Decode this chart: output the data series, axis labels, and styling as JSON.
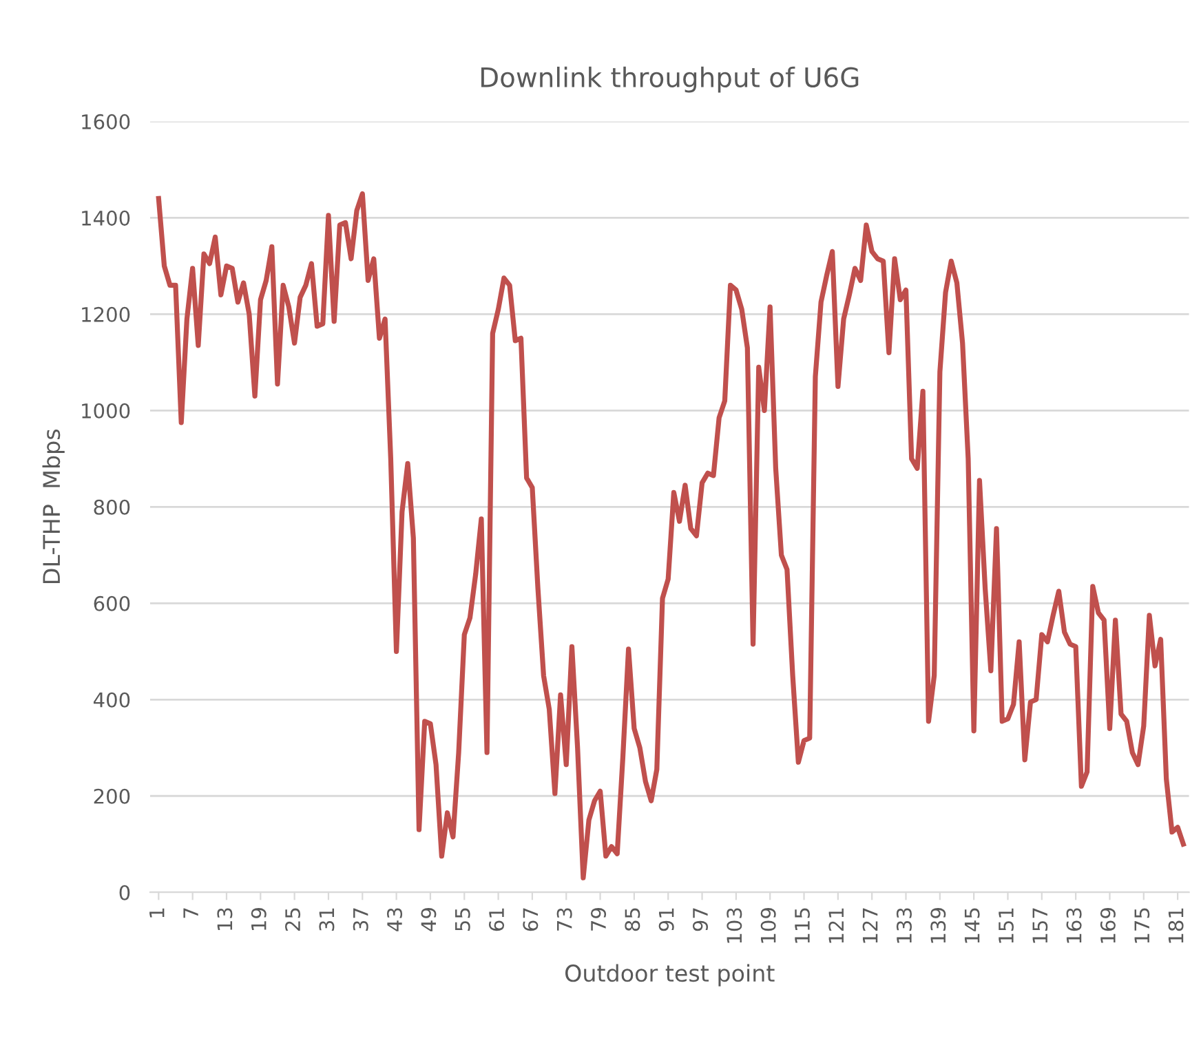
{
  "chart_data": {
    "type": "line",
    "title": "Downlink throughput of U6G",
    "xlabel": "Outdoor test point",
    "ylabel": "DL-THP  Mbps",
    "x": [
      1,
      2,
      3,
      4,
      5,
      6,
      7,
      8,
      9,
      10,
      11,
      12,
      13,
      14,
      15,
      16,
      17,
      18,
      19,
      20,
      21,
      22,
      23,
      24,
      25,
      26,
      27,
      28,
      29,
      30,
      31,
      32,
      33,
      34,
      35,
      36,
      37,
      38,
      39,
      40,
      41,
      42,
      43,
      44,
      45,
      46,
      47,
      48,
      49,
      50,
      51,
      52,
      53,
      54,
      55,
      56,
      57,
      58,
      59,
      60,
      61,
      62,
      63,
      64,
      65,
      66,
      67,
      68,
      69,
      70,
      71,
      72,
      73,
      74,
      75,
      76,
      77,
      78,
      79,
      80,
      81,
      82,
      83,
      84,
      85,
      86,
      87,
      88,
      89,
      90,
      91,
      92,
      93,
      94,
      95,
      96,
      97,
      98,
      99,
      100,
      101,
      102,
      103,
      104,
      105,
      106,
      107,
      108,
      109,
      110,
      111,
      112,
      113,
      114,
      115,
      116,
      117,
      118,
      119,
      120,
      121,
      122,
      123,
      124,
      125,
      126,
      127,
      128,
      129,
      130,
      131,
      132,
      133,
      134,
      135,
      136,
      137,
      138,
      139,
      140,
      141,
      142,
      143,
      144,
      145,
      146,
      147,
      148,
      149,
      150,
      151,
      152,
      153,
      154,
      155,
      156,
      157,
      158,
      159,
      160,
      161,
      162,
      163,
      164,
      165,
      166,
      167,
      168,
      169,
      170,
      171,
      172,
      173,
      174,
      175,
      176,
      177,
      178,
      179,
      180,
      181,
      182
    ],
    "series": [
      {
        "color": "#c0504d",
        "values": [
          1440,
          1300,
          1260,
          1260,
          975,
          1190,
          1295,
          1135,
          1325,
          1305,
          1360,
          1240,
          1300,
          1295,
          1225,
          1265,
          1200,
          1030,
          1230,
          1270,
          1340,
          1055,
          1260,
          1215,
          1140,
          1235,
          1260,
          1305,
          1175,
          1180,
          1405,
          1185,
          1385,
          1390,
          1315,
          1415,
          1450,
          1270,
          1315,
          1150,
          1190,
          900,
          500,
          790,
          890,
          735,
          130,
          355,
          350,
          265,
          75,
          165,
          115,
          290,
          535,
          570,
          660,
          775,
          290,
          1160,
          1210,
          1275,
          1260,
          1145,
          1150,
          860,
          840,
          630,
          450,
          380,
          205,
          410,
          265,
          510,
          300,
          30,
          150,
          190,
          210,
          75,
          95,
          80,
          280,
          505,
          340,
          300,
          230,
          190,
          255,
          610,
          650,
          830,
          770,
          845,
          755,
          740,
          850,
          870,
          865,
          985,
          1020,
          1260,
          1250,
          1210,
          1130,
          515,
          1090,
          1000,
          1215,
          880,
          700,
          670,
          450,
          270,
          315,
          320,
          1070,
          1225,
          1280,
          1330,
          1050,
          1190,
          1240,
          1295,
          1270,
          1385,
          1330,
          1315,
          1310,
          1120,
          1315,
          1230,
          1250,
          900,
          880,
          1040,
          355,
          450,
          1080,
          1245,
          1310,
          1265,
          1140,
          900,
          335,
          855,
          630,
          460,
          755,
          355,
          360,
          390,
          520,
          275,
          395,
          400,
          535,
          520,
          575,
          625,
          540,
          515,
          510,
          220,
          250,
          635,
          580,
          565,
          340,
          565,
          370,
          355,
          290,
          265,
          345,
          575,
          470,
          525,
          235,
          125,
          135,
          100
        ]
      }
    ],
    "xlim": [
      -0.5,
      183
    ],
    "xticks": [
      1,
      7,
      13,
      19,
      25,
      31,
      37,
      43,
      49,
      55,
      61,
      67,
      73,
      79,
      85,
      91,
      97,
      103,
      109,
      115,
      121,
      127,
      133,
      139,
      145,
      151,
      157,
      163,
      169,
      175,
      181
    ],
    "ylim": [
      0,
      1600
    ],
    "yticks": [
      0,
      200,
      400,
      600,
      800,
      1000,
      1200,
      1400,
      1600
    ],
    "grid": "y",
    "marker": "none",
    "line_style": "solid"
  }
}
